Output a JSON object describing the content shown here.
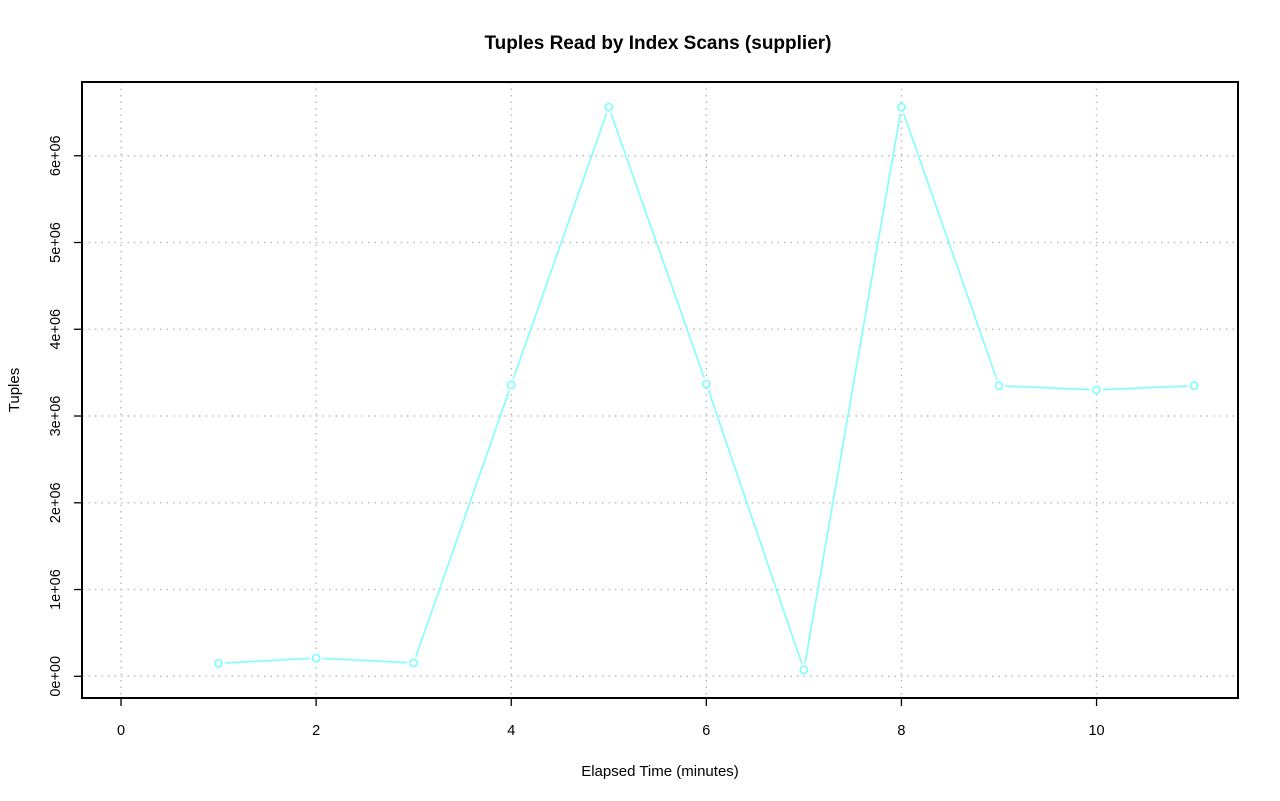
{
  "chart_data": {
    "type": "line",
    "title": "Tuples Read by Index Scans (supplier)",
    "xlabel": "Elapsed Time (minutes)",
    "ylabel": "Tuples",
    "xlim": [
      -0.4,
      11.45
    ],
    "ylim": [
      -250000,
      6850000
    ],
    "x_ticks": [
      0,
      2,
      4,
      6,
      8,
      10
    ],
    "x_tick_labels": [
      "0",
      "2",
      "4",
      "6",
      "8",
      "10"
    ],
    "y_ticks": [
      0,
      1000000,
      2000000,
      3000000,
      4000000,
      5000000,
      6000000
    ],
    "y_tick_labels": [
      "0e+00",
      "1e+06",
      "2e+06",
      "3e+06",
      "4e+06",
      "5e+06",
      "6e+06"
    ],
    "grid": true,
    "series": [
      {
        "color": "#7fffff",
        "x": [
          1,
          2,
          3,
          4,
          5,
          6,
          7,
          8,
          9,
          10,
          11
        ],
        "y": [
          150000,
          210000,
          155000,
          3360000,
          6560000,
          3370000,
          75000,
          6560000,
          3350000,
          3300000,
          3350000
        ]
      }
    ]
  }
}
